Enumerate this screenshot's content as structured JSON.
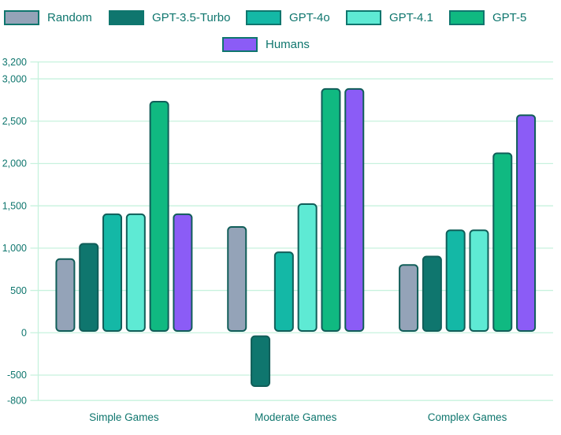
{
  "chart_data": {
    "type": "bar",
    "title": "",
    "xlabel": "",
    "ylabel": "",
    "categories": [
      "Simple Games",
      "Moderate Games",
      "Complex Games"
    ],
    "series": [
      {
        "name": "Random",
        "color": "#94a3b8",
        "values": [
          880,
          1260,
          810
        ]
      },
      {
        "name": "GPT-3.5-Turbo",
        "color": "#0f766e",
        "values": [
          1060,
          -640,
          910
        ]
      },
      {
        "name": "GPT-4o",
        "color": "#14b8a6",
        "values": [
          1410,
          960,
          1220
        ]
      },
      {
        "name": "GPT-4.1",
        "color": "#5eead4",
        "values": [
          1410,
          1530,
          1220
        ]
      },
      {
        "name": "GPT-5",
        "color": "#10b981",
        "values": [
          2740,
          2890,
          2130
        ]
      },
      {
        "name": "Humans",
        "color": "#8b5cf6",
        "values": [
          1410,
          2890,
          2580
        ]
      }
    ],
    "y_ticks": [
      {
        "value": 3200,
        "label": "3,200"
      },
      {
        "value": 3000,
        "label": "3,000"
      },
      {
        "value": 2500,
        "label": "2,500"
      },
      {
        "value": 2000,
        "label": "2,000"
      },
      {
        "value": 1500,
        "label": "1,500"
      },
      {
        "value": 1000,
        "label": "1,000"
      },
      {
        "value": 500,
        "label": "500"
      },
      {
        "value": 0,
        "label": "0"
      },
      {
        "value": -500,
        "label": "-500"
      },
      {
        "value": -800,
        "label": "-800"
      }
    ],
    "ylim": [
      -800,
      3200
    ],
    "grid": true,
    "legend_position": "top",
    "legend_rows": [
      [
        "Random",
        "GPT-3.5-Turbo",
        "GPT-4o",
        "GPT-4.1",
        "GPT-5"
      ],
      [
        "Humans"
      ]
    ]
  },
  "colors": {
    "background": "#ffffff",
    "text": "#0f766e",
    "grid": "#c7f2de",
    "bar_stroke": "#115e59",
    "swatch_border": "#0f766e"
  }
}
